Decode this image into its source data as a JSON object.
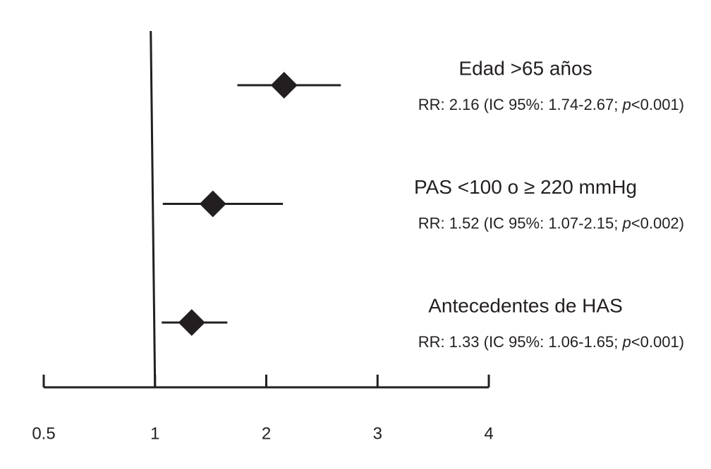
{
  "chart_data": {
    "type": "forest",
    "rows": [
      {
        "label": "Edad >65 años",
        "stat_label": [
          "RR: 2.16 (IC 95%: 1.74-2.67; ",
          "p",
          "<0.001)"
        ],
        "value": 2.16,
        "ci_low": 1.74,
        "ci_high": 2.67
      },
      {
        "label": "PAS <100 o ≥ 220 mmHg",
        "stat_label": [
          "RR: 1.52 (IC 95%: 1.07-2.15; ",
          "p",
          "<0.002)"
        ],
        "value": 1.52,
        "ci_low": 1.07,
        "ci_high": 2.15
      },
      {
        "label": "Antecedentes de HAS",
        "stat_label": [
          "RR: 1.33 (IC 95%: 1.06-1.65; ",
          "p",
          "<0.001)"
        ],
        "value": 1.33,
        "ci_low": 1.06,
        "ci_high": 1.65
      }
    ],
    "xlim": [
      0.5,
      4
    ],
    "xticks": [
      0.5,
      1,
      2,
      3,
      4
    ],
    "reference_line": 1,
    "color": "#231f20"
  }
}
